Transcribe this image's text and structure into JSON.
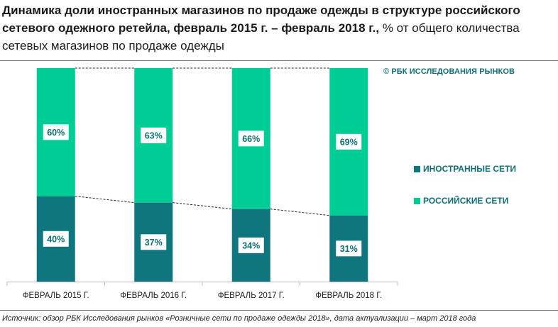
{
  "header": {
    "title_bold": "Динамика доли иностранных магазинов по продаже одежды в структуре   российского сетевого одежного ретейла, февраль 2015 г. – февраль 2018 г.,",
    "title_rest": " % от общего количества сетевых магазинов по продаже одежды"
  },
  "copyright": "© РБК ИССЛЕДОВАНИЯ РЫНКОВ",
  "source": "Источник: обзор РБК Исследования рынков «Розничные сети по продаже одежды 2018», дата актуализации – март 2018 года",
  "colors": {
    "foreign": "#0f767d",
    "russian": "#00cc96",
    "label_box": "#ffffff",
    "label_text": "#0f6e75"
  },
  "chart_data": {
    "type": "bar",
    "stacked": true,
    "categories": [
      "ФЕВРАЛЬ 2015 Г.",
      "ФЕВРАЛЬ 2016 Г.",
      "ФЕВРАЛЬ 2017 Г.",
      "ФЕВРАЛЬ 2018 Г."
    ],
    "series": [
      {
        "name": "ИНОСТРАННЫЕ СЕТИ",
        "values": [
          40,
          37,
          34,
          31
        ],
        "labels": [
          "40%",
          "37%",
          "34%",
          "31%"
        ]
      },
      {
        "name": "РОССИЙСКИЕ СЕТИ",
        "values": [
          60,
          63,
          66,
          69
        ],
        "labels": [
          "60%",
          "63%",
          "66%",
          "69%"
        ]
      }
    ],
    "ylim": [
      0,
      100
    ],
    "grid": false,
    "legend": "right",
    "series_lines": "dashed"
  }
}
